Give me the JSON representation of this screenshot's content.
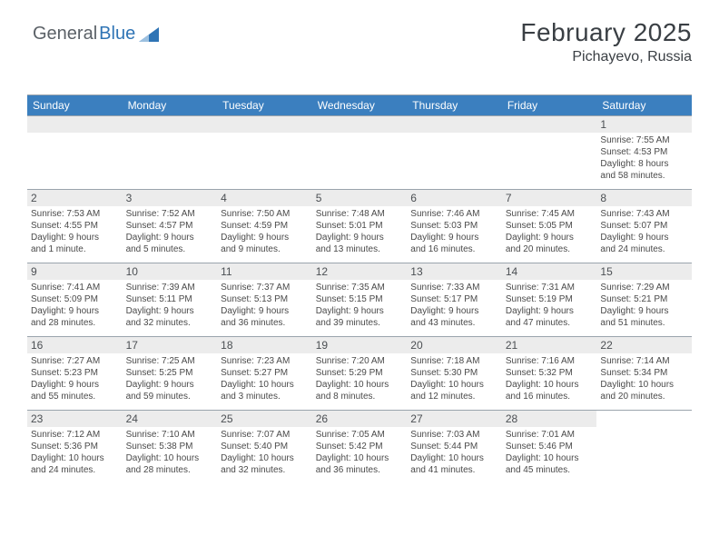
{
  "logo": {
    "word1": "General",
    "word2": "Blue"
  },
  "header": {
    "title": "February 2025",
    "location": "Pichayevo, Russia"
  },
  "colors": {
    "header_blue": "#3b7fbf",
    "divider": "#9aa4ad",
    "daynum_bg": "#ececec",
    "logo_gray": "#5b6167",
    "logo_blue": "#2f74b5"
  },
  "daysOfWeek": [
    "Sunday",
    "Monday",
    "Tuesday",
    "Wednesday",
    "Thursday",
    "Friday",
    "Saturday"
  ],
  "weeks": [
    [
      {
        "blank": true
      },
      {
        "blank": true
      },
      {
        "blank": true
      },
      {
        "blank": true
      },
      {
        "blank": true
      },
      {
        "blank": true
      },
      {
        "n": "1",
        "sr": "Sunrise: 7:55 AM",
        "ss": "Sunset: 4:53 PM",
        "d1": "Daylight: 8 hours",
        "d2": "and 58 minutes."
      }
    ],
    [
      {
        "n": "2",
        "sr": "Sunrise: 7:53 AM",
        "ss": "Sunset: 4:55 PM",
        "d1": "Daylight: 9 hours",
        "d2": "and 1 minute."
      },
      {
        "n": "3",
        "sr": "Sunrise: 7:52 AM",
        "ss": "Sunset: 4:57 PM",
        "d1": "Daylight: 9 hours",
        "d2": "and 5 minutes."
      },
      {
        "n": "4",
        "sr": "Sunrise: 7:50 AM",
        "ss": "Sunset: 4:59 PM",
        "d1": "Daylight: 9 hours",
        "d2": "and 9 minutes."
      },
      {
        "n": "5",
        "sr": "Sunrise: 7:48 AM",
        "ss": "Sunset: 5:01 PM",
        "d1": "Daylight: 9 hours",
        "d2": "and 13 minutes."
      },
      {
        "n": "6",
        "sr": "Sunrise: 7:46 AM",
        "ss": "Sunset: 5:03 PM",
        "d1": "Daylight: 9 hours",
        "d2": "and 16 minutes."
      },
      {
        "n": "7",
        "sr": "Sunrise: 7:45 AM",
        "ss": "Sunset: 5:05 PM",
        "d1": "Daylight: 9 hours",
        "d2": "and 20 minutes."
      },
      {
        "n": "8",
        "sr": "Sunrise: 7:43 AM",
        "ss": "Sunset: 5:07 PM",
        "d1": "Daylight: 9 hours",
        "d2": "and 24 minutes."
      }
    ],
    [
      {
        "n": "9",
        "sr": "Sunrise: 7:41 AM",
        "ss": "Sunset: 5:09 PM",
        "d1": "Daylight: 9 hours",
        "d2": "and 28 minutes."
      },
      {
        "n": "10",
        "sr": "Sunrise: 7:39 AM",
        "ss": "Sunset: 5:11 PM",
        "d1": "Daylight: 9 hours",
        "d2": "and 32 minutes."
      },
      {
        "n": "11",
        "sr": "Sunrise: 7:37 AM",
        "ss": "Sunset: 5:13 PM",
        "d1": "Daylight: 9 hours",
        "d2": "and 36 minutes."
      },
      {
        "n": "12",
        "sr": "Sunrise: 7:35 AM",
        "ss": "Sunset: 5:15 PM",
        "d1": "Daylight: 9 hours",
        "d2": "and 39 minutes."
      },
      {
        "n": "13",
        "sr": "Sunrise: 7:33 AM",
        "ss": "Sunset: 5:17 PM",
        "d1": "Daylight: 9 hours",
        "d2": "and 43 minutes."
      },
      {
        "n": "14",
        "sr": "Sunrise: 7:31 AM",
        "ss": "Sunset: 5:19 PM",
        "d1": "Daylight: 9 hours",
        "d2": "and 47 minutes."
      },
      {
        "n": "15",
        "sr": "Sunrise: 7:29 AM",
        "ss": "Sunset: 5:21 PM",
        "d1": "Daylight: 9 hours",
        "d2": "and 51 minutes."
      }
    ],
    [
      {
        "n": "16",
        "sr": "Sunrise: 7:27 AM",
        "ss": "Sunset: 5:23 PM",
        "d1": "Daylight: 9 hours",
        "d2": "and 55 minutes."
      },
      {
        "n": "17",
        "sr": "Sunrise: 7:25 AM",
        "ss": "Sunset: 5:25 PM",
        "d1": "Daylight: 9 hours",
        "d2": "and 59 minutes."
      },
      {
        "n": "18",
        "sr": "Sunrise: 7:23 AM",
        "ss": "Sunset: 5:27 PM",
        "d1": "Daylight: 10 hours",
        "d2": "and 3 minutes."
      },
      {
        "n": "19",
        "sr": "Sunrise: 7:20 AM",
        "ss": "Sunset: 5:29 PM",
        "d1": "Daylight: 10 hours",
        "d2": "and 8 minutes."
      },
      {
        "n": "20",
        "sr": "Sunrise: 7:18 AM",
        "ss": "Sunset: 5:30 PM",
        "d1": "Daylight: 10 hours",
        "d2": "and 12 minutes."
      },
      {
        "n": "21",
        "sr": "Sunrise: 7:16 AM",
        "ss": "Sunset: 5:32 PM",
        "d1": "Daylight: 10 hours",
        "d2": "and 16 minutes."
      },
      {
        "n": "22",
        "sr": "Sunrise: 7:14 AM",
        "ss": "Sunset: 5:34 PM",
        "d1": "Daylight: 10 hours",
        "d2": "and 20 minutes."
      }
    ],
    [
      {
        "n": "23",
        "sr": "Sunrise: 7:12 AM",
        "ss": "Sunset: 5:36 PM",
        "d1": "Daylight: 10 hours",
        "d2": "and 24 minutes."
      },
      {
        "n": "24",
        "sr": "Sunrise: 7:10 AM",
        "ss": "Sunset: 5:38 PM",
        "d1": "Daylight: 10 hours",
        "d2": "and 28 minutes."
      },
      {
        "n": "25",
        "sr": "Sunrise: 7:07 AM",
        "ss": "Sunset: 5:40 PM",
        "d1": "Daylight: 10 hours",
        "d2": "and 32 minutes."
      },
      {
        "n": "26",
        "sr": "Sunrise: 7:05 AM",
        "ss": "Sunset: 5:42 PM",
        "d1": "Daylight: 10 hours",
        "d2": "and 36 minutes."
      },
      {
        "n": "27",
        "sr": "Sunrise: 7:03 AM",
        "ss": "Sunset: 5:44 PM",
        "d1": "Daylight: 10 hours",
        "d2": "and 41 minutes."
      },
      {
        "n": "28",
        "sr": "Sunrise: 7:01 AM",
        "ss": "Sunset: 5:46 PM",
        "d1": "Daylight: 10 hours",
        "d2": "and 45 minutes."
      },
      {
        "blank": true,
        "nobar": true
      }
    ]
  ]
}
